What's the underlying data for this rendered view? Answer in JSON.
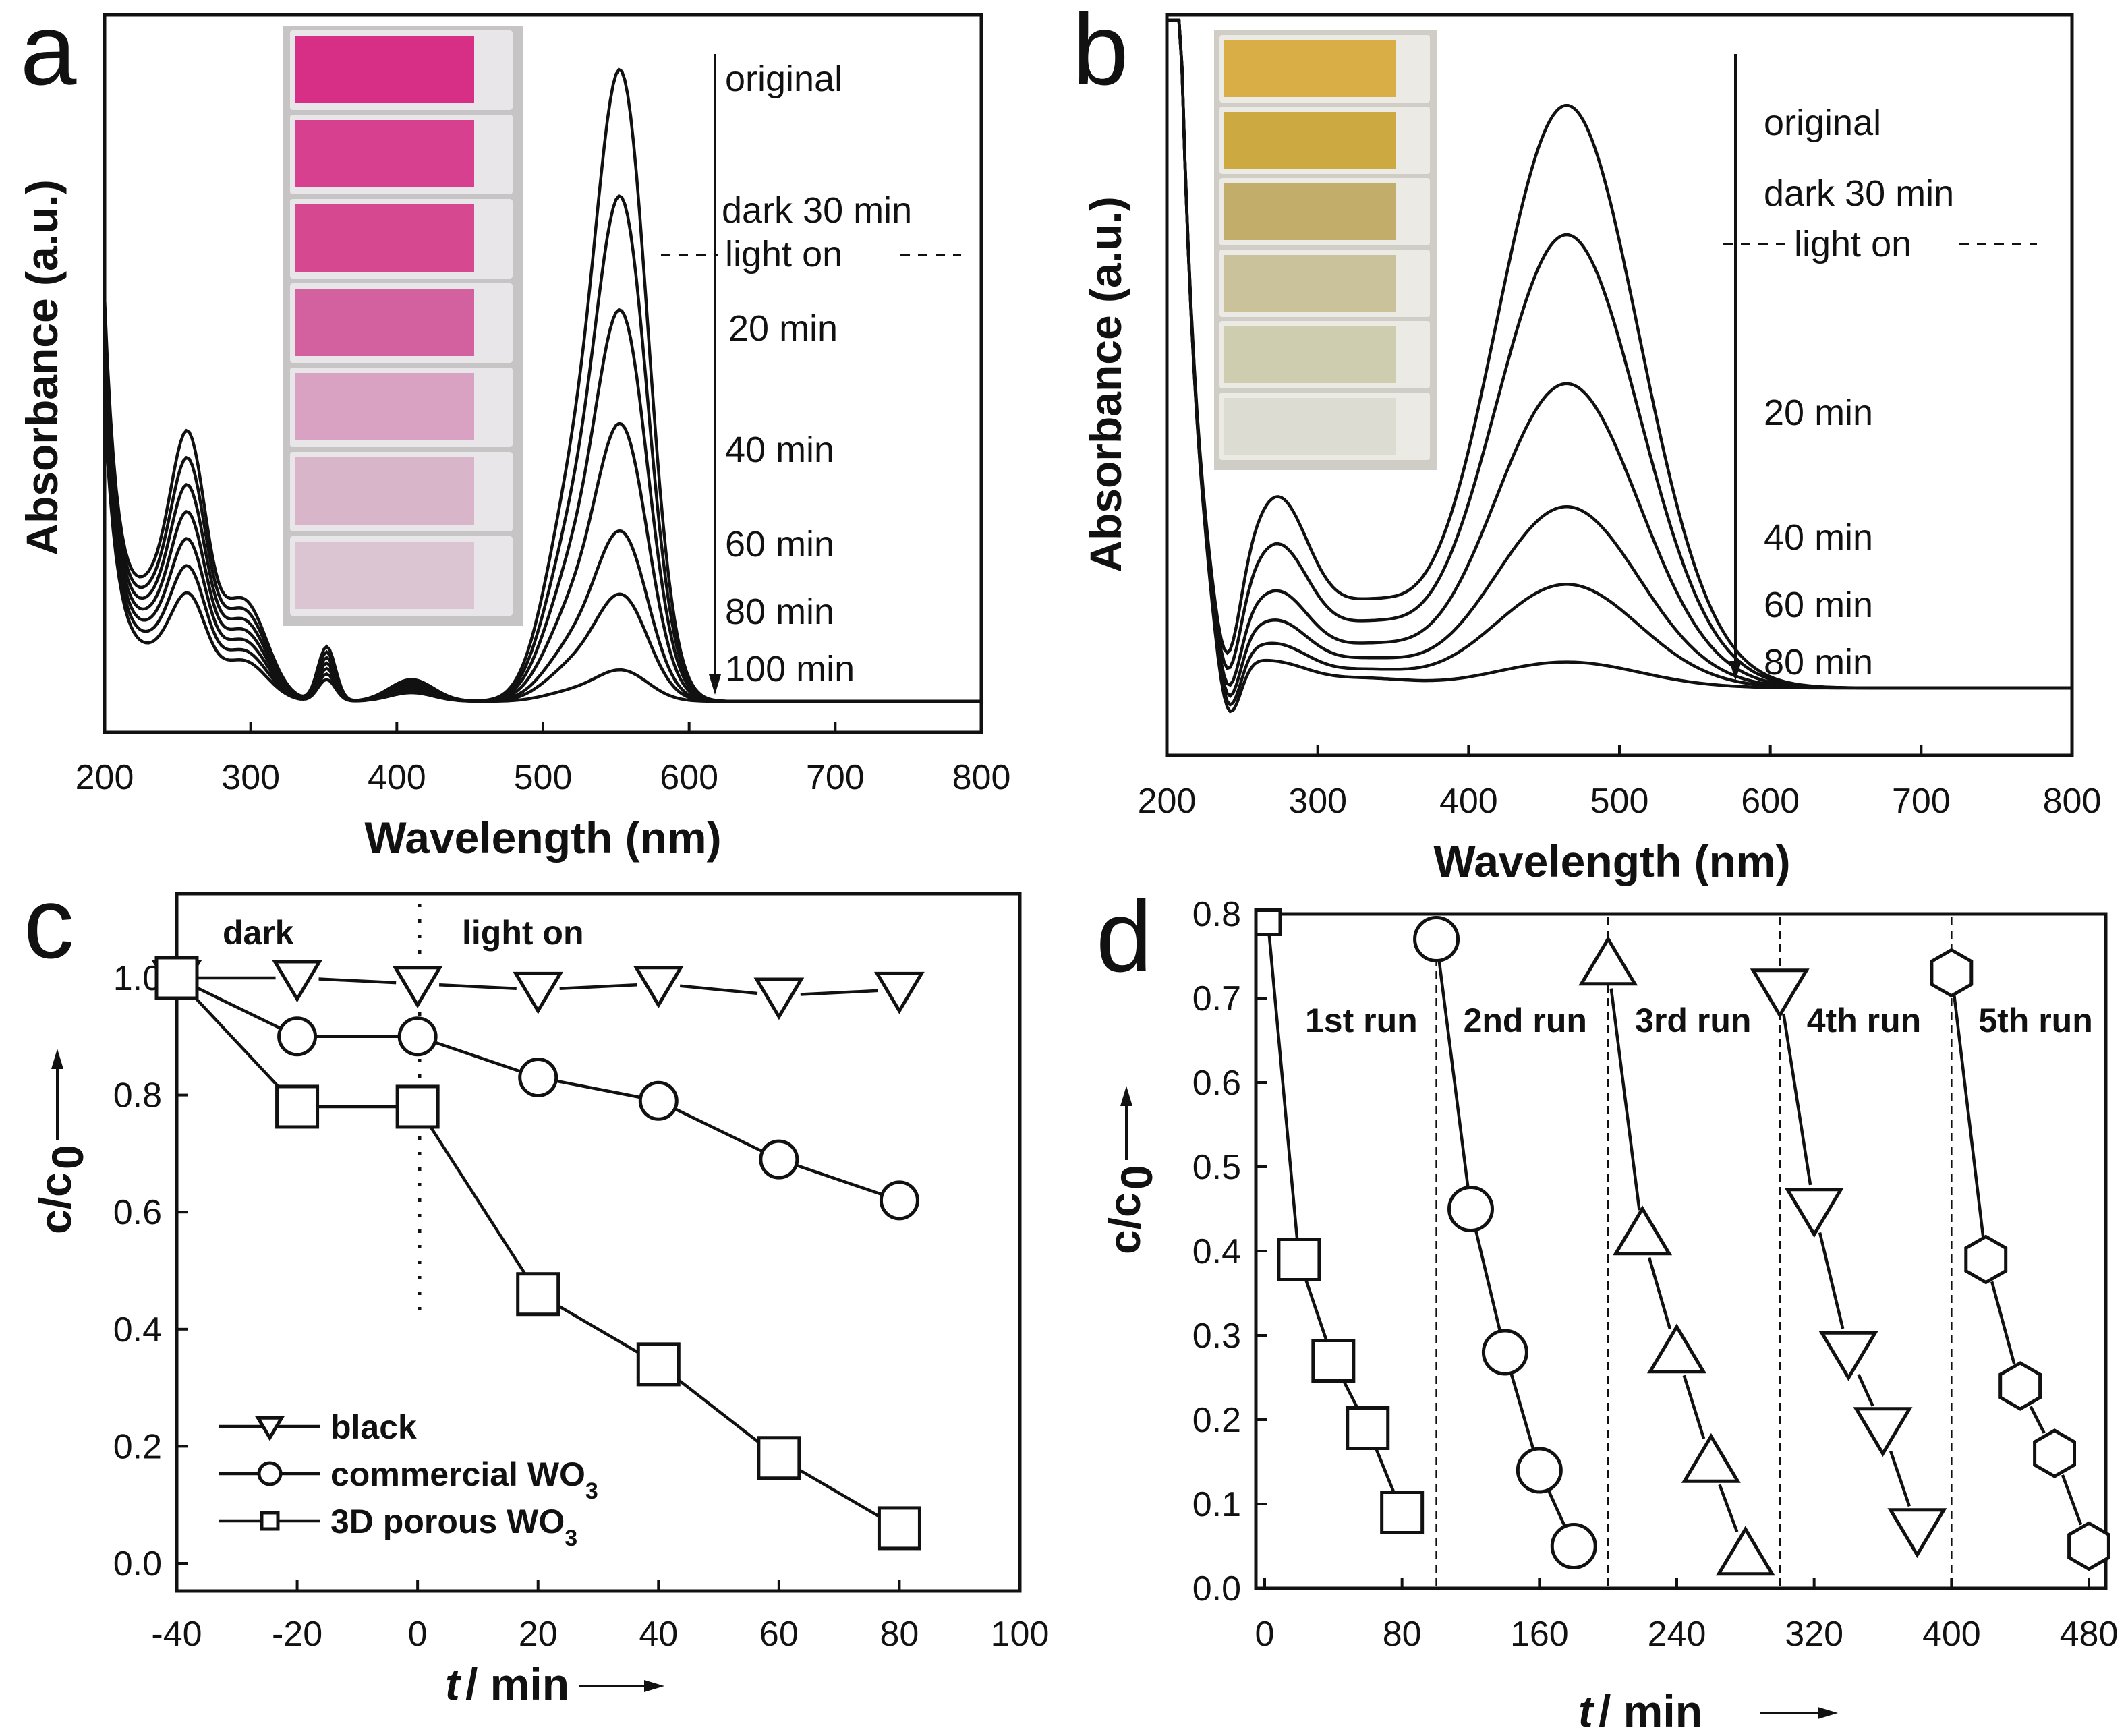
{
  "colors": {
    "panel_a_inset_cuvettes": [
      "#d62f85",
      "#d6408e",
      "#d64890",
      "#d3609f",
      "#d9a2c2",
      "#d9b5ca",
      "#dbc5d2"
    ],
    "panel_b_inset_cuvettes": [
      "#d9ae46",
      "#cda942",
      "#c3ad6a",
      "#c9c29a",
      "#cfcdb0",
      "#dcdcd2"
    ]
  },
  "chart_data": [
    {
      "panel": "a",
      "type": "line",
      "xlabel": "Wavelength (nm)",
      "ylabel": "Absorbance (a.u.)",
      "xlim": [
        200,
        800
      ],
      "xticks": [
        "200",
        "300",
        "400",
        "500",
        "600",
        "700",
        "800"
      ],
      "inset": "photo of seven cuvettes, pink fading to near colorless",
      "arrow": "downward, from original to 100 min",
      "annotations": [
        "original",
        "dark 30 min",
        "light on",
        "20 min",
        "40 min",
        "60 min",
        "80 min",
        "100 min"
      ],
      "series": [
        {
          "name": "original",
          "peak_nm": 554,
          "peak": 1.0,
          "uv": 0.3
        },
        {
          "name": "dark 30 min",
          "peak_nm": 554,
          "peak": 0.8,
          "uv": 0.27
        },
        {
          "name": "20 min",
          "peak_nm": 554,
          "peak": 0.62,
          "uv": 0.24
        },
        {
          "name": "40 min",
          "peak_nm": 554,
          "peak": 0.44,
          "uv": 0.21
        },
        {
          "name": "60 min",
          "peak_nm": 554,
          "peak": 0.27,
          "uv": 0.18
        },
        {
          "name": "80 min",
          "peak_nm": 554,
          "peak": 0.17,
          "uv": 0.15
        },
        {
          "name": "100 min",
          "peak_nm": 554,
          "peak": 0.05,
          "uv": 0.12
        }
      ]
    },
    {
      "panel": "b",
      "type": "line",
      "xlabel": "Wavelength (nm)",
      "ylabel": "Absorbance (a.u.)",
      "xlim": [
        200,
        800
      ],
      "xticks": [
        "200",
        "300",
        "400",
        "500",
        "600",
        "700",
        "800"
      ],
      "inset": "photo of six cuvettes, yellow fading to near colorless",
      "arrow": "downward, from original to 80 min",
      "annotations": [
        "original",
        "dark 30 min",
        "light on",
        "20 min",
        "40 min",
        "60 min",
        "80 min"
      ],
      "series": [
        {
          "name": "original",
          "peak_nm": 465,
          "peak": 0.9,
          "uv": 0.32
        },
        {
          "name": "dark 30 min",
          "peak_nm": 465,
          "peak": 0.7,
          "uv": 0.24
        },
        {
          "name": "20 min",
          "peak_nm": 465,
          "peak": 0.47,
          "uv": 0.16
        },
        {
          "name": "40 min",
          "peak_nm": 465,
          "peak": 0.28,
          "uv": 0.11
        },
        {
          "name": "60 min",
          "peak_nm": 465,
          "peak": 0.16,
          "uv": 0.07
        },
        {
          "name": "80 min",
          "peak_nm": 465,
          "peak": 0.04,
          "uv": 0.04
        }
      ]
    },
    {
      "panel": "c",
      "type": "scatter",
      "xlabel_italic": "t",
      "xlabel": "/ min",
      "ylabel_main": "c/c",
      "ylabel_sub": "0",
      "xlim": [
        -40,
        100
      ],
      "ylim": [
        -0.05,
        1.12
      ],
      "xticks": [
        "-40",
        "-20",
        "0",
        "20",
        "40",
        "60",
        "80",
        "100"
      ],
      "yticks": [
        "0.0",
        "0.2",
        "0.4",
        "0.6",
        "0.8",
        "1.0"
      ],
      "dark_label": "dark",
      "light_label": "light on",
      "light_on_at": 0,
      "x": [
        -40,
        -20,
        0,
        20,
        40,
        60,
        80
      ],
      "series": [
        {
          "name": "black",
          "marker": "triangle-down",
          "values": [
            1.0,
            1.0,
            0.99,
            0.98,
            0.99,
            0.97,
            0.98
          ]
        },
        {
          "name": "commercial WO",
          "sub": "3",
          "marker": "circle",
          "values": [
            1.0,
            0.9,
            0.9,
            0.83,
            0.79,
            0.69,
            0.62
          ]
        },
        {
          "name": "3D porous WO",
          "sub": "3",
          "marker": "square",
          "values": [
            1.0,
            0.78,
            0.78,
            0.46,
            0.34,
            0.18,
            0.06
          ]
        }
      ]
    },
    {
      "panel": "d",
      "type": "scatter",
      "xlabel_italic": "t",
      "xlabel": "/ min",
      "ylabel_main": "c/c",
      "ylabel_sub": "0",
      "xlim": [
        0,
        490
      ],
      "ylim": [
        0,
        0.8
      ],
      "xticks": [
        "0",
        "80",
        "160",
        "240",
        "320",
        "400",
        "480"
      ],
      "yticks": [
        "0.0",
        "0.1",
        "0.2",
        "0.3",
        "0.4",
        "0.5",
        "0.6",
        "0.7",
        "0.8"
      ],
      "run_boundaries": [
        100,
        200,
        300,
        400
      ],
      "runs": [
        {
          "label": "1st run",
          "marker": "square",
          "x": [
            0,
            20,
            40,
            60,
            80
          ],
          "values": [
            0.79,
            0.39,
            0.27,
            0.19,
            0.09
          ]
        },
        {
          "label": "2nd run",
          "marker": "circle",
          "x": [
            100,
            120,
            140,
            160,
            180
          ],
          "values": [
            0.77,
            0.45,
            0.28,
            0.14,
            0.05
          ]
        },
        {
          "label": "3rd run",
          "marker": "triangle-up",
          "x": [
            200,
            220,
            240,
            260,
            280
          ],
          "values": [
            0.74,
            0.42,
            0.28,
            0.15,
            0.04
          ]
        },
        {
          "label": "4th run",
          "marker": "triangle-down",
          "x": [
            300,
            320,
            340,
            360,
            380
          ],
          "values": [
            0.71,
            0.45,
            0.28,
            0.19,
            0.07
          ]
        },
        {
          "label": "5th run",
          "marker": "hexagon",
          "x": [
            400,
            420,
            440,
            460,
            480
          ],
          "values": [
            0.73,
            0.39,
            0.24,
            0.16,
            0.05
          ]
        }
      ]
    }
  ],
  "panel_labels": [
    "a",
    "b",
    "c",
    "d"
  ]
}
